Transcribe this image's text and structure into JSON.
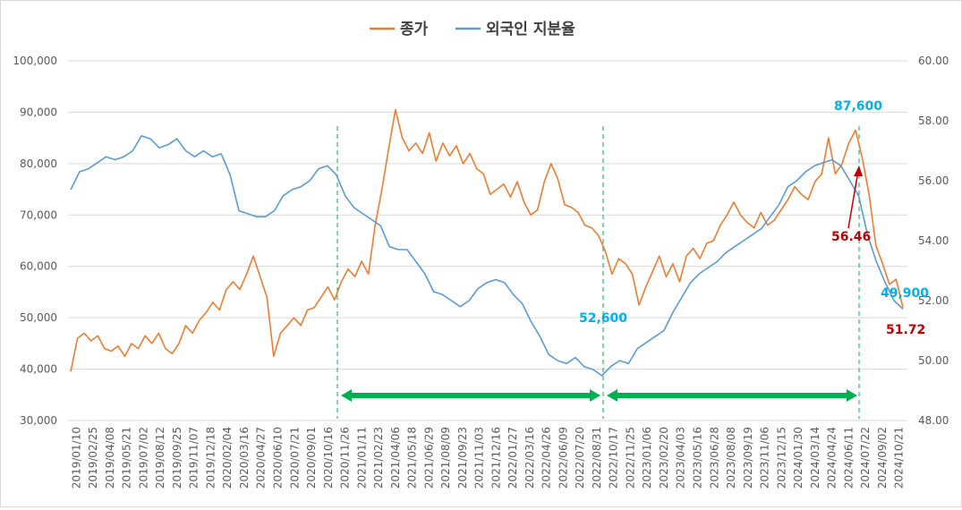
{
  "chart_data": {
    "type": "line",
    "legend": [
      {
        "name": "종가",
        "color": "#ED7D31"
      },
      {
        "name": "외국인 지분율",
        "color": "#5B9BD5"
      }
    ],
    "legend_placement": "top-center",
    "grid": "horizontal",
    "y_left": {
      "min": 30000,
      "max": 100000,
      "step": 10000,
      "ticks": [
        "30,000",
        "40,000",
        "50,000",
        "60,000",
        "70,000",
        "80,000",
        "90,000",
        "100,000"
      ]
    },
    "y_right": {
      "min": 48,
      "max": 60,
      "step": 2,
      "ticks": [
        "48.00",
        "50.00",
        "52.00",
        "54.00",
        "56.00",
        "58.00",
        "60.00"
      ]
    },
    "x_ticks": [
      "2019/01/10",
      "2019/02/25",
      "2019/04/08",
      "2019/05/21",
      "2019/07/02",
      "2019/08/12",
      "2019/09/25",
      "2019/11/07",
      "2019/12/18",
      "2020/02/04",
      "2020/03/16",
      "2020/04/27",
      "2020/06/10",
      "2020/07/21",
      "2020/09/01",
      "2020/10/16",
      "2020/11/26",
      "2021/01/11",
      "2021/02/23",
      "2021/04/06",
      "2021/05/18",
      "2021/06/29",
      "2021/08/09",
      "2021/09/23",
      "2021/11/03",
      "2021/12/16",
      "2022/01/27",
      "2022/03/16",
      "2022/04/26",
      "2022/06/09",
      "2022/07/20",
      "2022/08/31",
      "2022/10/17",
      "2022/11/25",
      "2023/01/06",
      "2023/02/20",
      "2023/04/03",
      "2023/05/16",
      "2023/06/28",
      "2023/08/08",
      "2023/09/19",
      "2023/11/06",
      "2023/12/15",
      "2024/01/30",
      "2024/03/14",
      "2024/04/24",
      "2024/06/11",
      "2024/07/22",
      "2024/09/02",
      "2024/10/21"
    ],
    "series": [
      {
        "name": "종가",
        "axis": "left",
        "values": [
          39500,
          46000,
          47000,
          45500,
          46500,
          44000,
          43500,
          44500,
          42500,
          45000,
          44000,
          46500,
          45000,
          47000,
          44000,
          43000,
          45000,
          48500,
          47000,
          49500,
          51000,
          53000,
          51500,
          55500,
          57000,
          55500,
          58500,
          62000,
          58000,
          54000,
          42500,
          47000,
          48500,
          50000,
          48500,
          51500,
          52000,
          54000,
          56000,
          53500,
          57000,
          59500,
          58000,
          61000,
          58500,
          68000,
          75000,
          83000,
          90500,
          85000,
          82500,
          84000,
          82000,
          86000,
          80500,
          84000,
          81500,
          83500,
          80000,
          82000,
          79000,
          78000,
          74000,
          75000,
          76000,
          73500,
          76500,
          72500,
          70000,
          71000,
          76500,
          80000,
          77000,
          72000,
          71500,
          70500,
          68000,
          67500,
          66000,
          63000,
          58500,
          61500,
          60500,
          58500,
          52500,
          56000,
          59000,
          62000,
          58000,
          60500,
          57000,
          62000,
          63500,
          61500,
          64500,
          65000,
          68000,
          70000,
          72500,
          70000,
          68500,
          67500,
          70500,
          68000,
          69000,
          71000,
          73000,
          75500,
          74000,
          73000,
          76500,
          78000,
          85000,
          78000,
          80000,
          84000,
          86500,
          81000,
          74000,
          64000,
          60500,
          56500,
          57500,
          52000
        ]
      },
      {
        "name": "외국인 지분율",
        "axis": "right",
        "values": [
          55.7,
          56.3,
          56.4,
          56.6,
          56.8,
          56.7,
          56.8,
          57.0,
          57.5,
          57.4,
          57.1,
          57.2,
          57.4,
          57.0,
          56.8,
          57.0,
          56.8,
          56.9,
          56.2,
          55.0,
          54.9,
          54.8,
          54.8,
          55.0,
          55.5,
          55.7,
          55.8,
          56.0,
          56.4,
          56.5,
          56.2,
          55.5,
          55.1,
          54.9,
          54.7,
          54.5,
          53.8,
          53.7,
          53.7,
          53.3,
          52.9,
          52.3,
          52.2,
          52.0,
          51.8,
          52.0,
          52.4,
          52.6,
          52.7,
          52.6,
          52.2,
          51.9,
          51.3,
          50.8,
          50.2,
          50.0,
          49.9,
          50.1,
          49.8,
          49.7,
          49.5,
          49.8,
          50.0,
          49.9,
          50.4,
          50.6,
          50.8,
          51.0,
          51.6,
          52.1,
          52.6,
          52.9,
          53.1,
          53.3,
          53.6,
          53.8,
          54.0,
          54.2,
          54.4,
          54.8,
          55.2,
          55.8,
          56.0,
          56.3,
          56.5,
          56.6,
          56.7,
          56.5,
          56.0,
          55.5,
          54.2,
          53.3,
          52.6,
          52.0,
          51.72
        ]
      }
    ],
    "annotations": {
      "peak_price": {
        "text": "87,600",
        "color": "#00B0F0"
      },
      "trough_price": {
        "text": "52,600",
        "color": "#00B0F0"
      },
      "last_price": {
        "text": "49,900",
        "color": "#00B0F0"
      },
      "peak_share": {
        "text": "56.46",
        "color": "#C00000"
      },
      "last_share": {
        "text": "51.72",
        "color": "#C00000"
      }
    },
    "periods": {
      "color": "#00B050"
    }
  }
}
